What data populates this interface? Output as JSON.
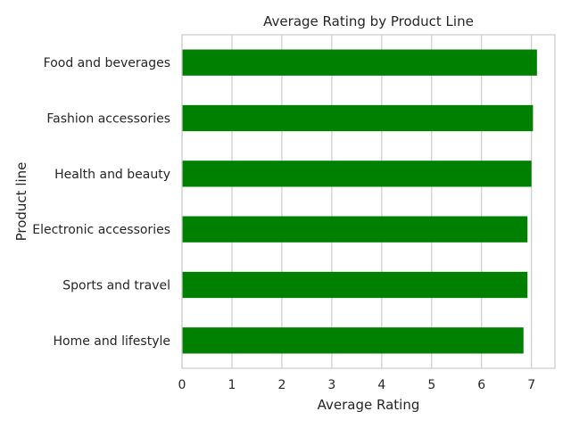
{
  "chart_data": {
    "type": "bar",
    "orientation": "horizontal",
    "title": "Average Rating by Product Line",
    "xlabel": "Average Rating",
    "ylabel": "Product line",
    "categories": [
      "Food and beverages",
      "Fashion accessories",
      "Health and beauty",
      "Electronic accessories",
      "Sports and travel",
      "Home and lifestyle"
    ],
    "values": [
      7.11,
      7.03,
      7.0,
      6.92,
      6.92,
      6.84
    ],
    "xlim": [
      0,
      7.47
    ],
    "xticks": [
      "0",
      "1",
      "2",
      "3",
      "4",
      "5",
      "6",
      "7"
    ],
    "grid": true,
    "bar_color": "#008000"
  }
}
